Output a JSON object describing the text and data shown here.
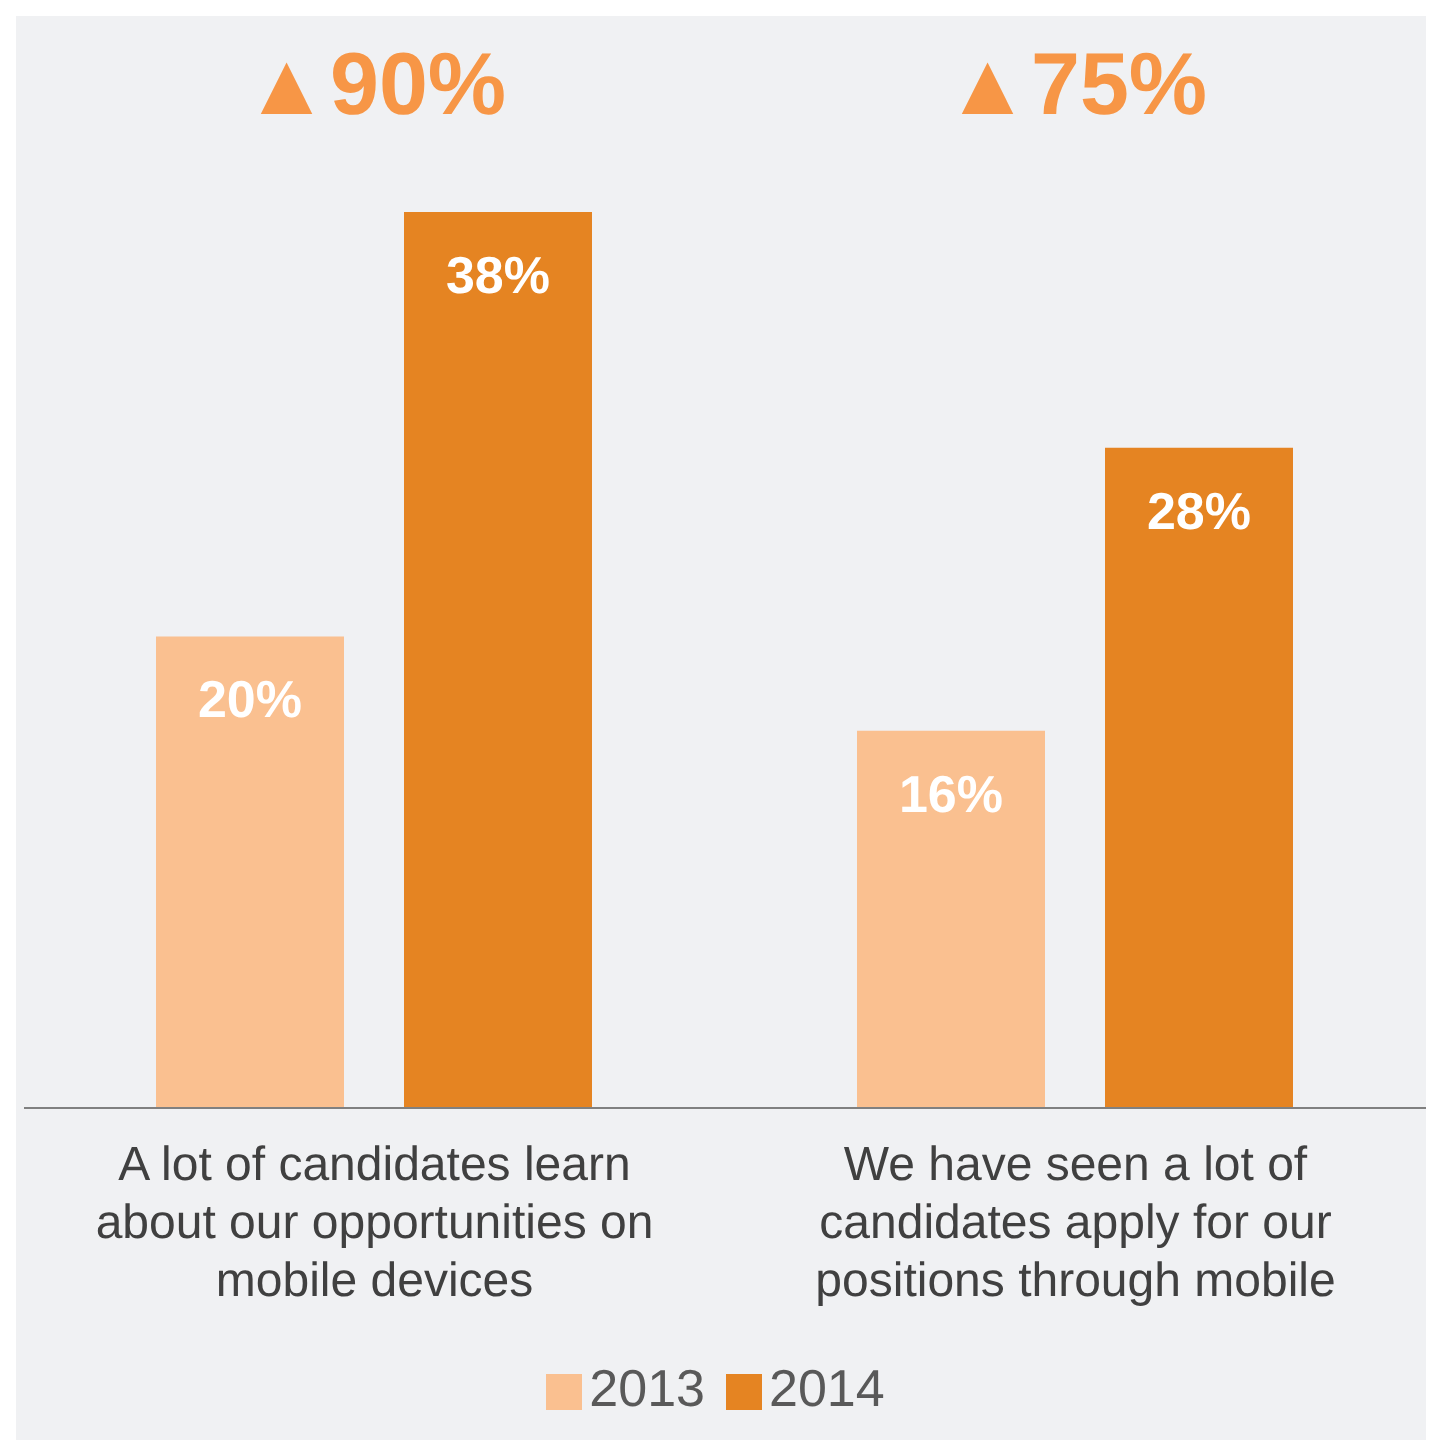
{
  "chart_data": {
    "type": "bar",
    "categories": [
      "A lot of candidates learn about our opportunities on mobile devices",
      "We have seen a lot of candidates apply for our positions through mobile"
    ],
    "series": [
      {
        "name": "2013",
        "color": "#fac090",
        "values": [
          20,
          16
        ],
        "value_labels": [
          "20%",
          "16%"
        ]
      },
      {
        "name": "2014",
        "color": "#e58422",
        "values": [
          38,
          28
        ],
        "value_labels": [
          "38%",
          "28%"
        ]
      }
    ],
    "legend": "bottom",
    "annotations": [
      "▲90%",
      "▲75%"
    ]
  }
}
